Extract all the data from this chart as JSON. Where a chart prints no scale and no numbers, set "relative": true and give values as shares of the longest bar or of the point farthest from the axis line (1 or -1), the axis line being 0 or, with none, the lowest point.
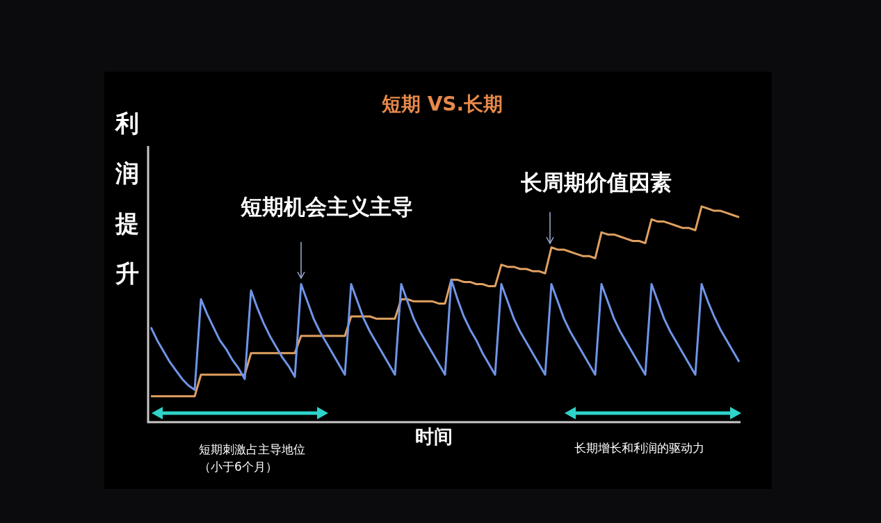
{
  "chart_data": {
    "type": "line",
    "title": "短期 VS.长期",
    "xlabel": "时间",
    "ylabel": "利润提升",
    "relative": true,
    "categories": [
      null,
      null,
      null,
      null,
      null,
      null,
      null,
      null,
      null,
      null,
      null,
      null,
      null,
      null,
      null,
      null,
      null,
      null,
      null,
      null,
      null,
      null,
      null,
      null,
      null,
      null,
      null,
      null,
      null,
      null,
      null,
      null,
      null,
      null,
      null,
      null,
      null,
      null,
      null,
      null,
      null,
      null,
      null,
      null,
      null,
      null,
      null,
      null,
      null,
      null,
      null,
      null,
      null,
      null,
      null,
      null,
      null,
      null,
      null,
      null,
      null,
      null,
      null,
      null,
      null,
      null,
      null,
      null,
      null,
      null,
      null,
      null,
      null,
      null,
      null,
      null,
      null,
      null,
      null,
      null,
      null,
      null,
      null,
      null,
      null,
      null,
      null,
      null,
      null,
      null,
      null,
      null,
      null,
      null,
      null
    ],
    "annotations": [
      "短期机会主义主导",
      "长周期价值因素",
      "短期刺激占主导地位",
      "（小于6个月）",
      "长期增长和利润的驱动力"
    ],
    "series": [
      {
        "color": "#6f95e8",
        "values": [
          0.44,
          0.38,
          0.33,
          0.28,
          0.24,
          0.2,
          0.17,
          0.15,
          0.57,
          0.5,
          0.44,
          0.38,
          0.34,
          0.29,
          0.25,
          0.2,
          0.61,
          0.53,
          0.46,
          0.4,
          0.35,
          0.3,
          0.26,
          0.21,
          0.64,
          0.56,
          0.48,
          0.42,
          0.37,
          0.32,
          0.27,
          0.22,
          0.64,
          0.56,
          0.48,
          0.42,
          0.37,
          0.32,
          0.27,
          0.22,
          0.64,
          0.56,
          0.48,
          0.42,
          0.37,
          0.32,
          0.27,
          0.22,
          0.66,
          0.57,
          0.49,
          0.43,
          0.38,
          0.32,
          0.27,
          0.22,
          0.64,
          0.56,
          0.48,
          0.42,
          0.37,
          0.32,
          0.27,
          0.22,
          0.64,
          0.56,
          0.48,
          0.42,
          0.37,
          0.32,
          0.27,
          0.22,
          0.64,
          0.56,
          0.48,
          0.42,
          0.37,
          0.32,
          0.27,
          0.22,
          0.64,
          0.56,
          0.48,
          0.42,
          0.37,
          0.32,
          0.27,
          0.22,
          0.64,
          0.56,
          0.49,
          0.43,
          0.38,
          0.33,
          0.28
        ]
      },
      {
        "color": "#e0a060",
        "values": [
          0.12,
          0.12,
          0.12,
          0.12,
          0.12,
          0.12,
          0.12,
          0.12,
          0.22,
          0.22,
          0.22,
          0.22,
          0.22,
          0.22,
          0.22,
          0.22,
          0.32,
          0.32,
          0.32,
          0.32,
          0.32,
          0.32,
          0.32,
          0.32,
          0.4,
          0.4,
          0.4,
          0.4,
          0.4,
          0.4,
          0.4,
          0.4,
          0.49,
          0.49,
          0.49,
          0.49,
          0.48,
          0.48,
          0.48,
          0.48,
          0.57,
          0.57,
          0.56,
          0.56,
          0.56,
          0.56,
          0.55,
          0.55,
          0.66,
          0.66,
          0.65,
          0.65,
          0.64,
          0.64,
          0.63,
          0.63,
          0.73,
          0.72,
          0.72,
          0.71,
          0.71,
          0.7,
          0.7,
          0.69,
          0.81,
          0.8,
          0.8,
          0.79,
          0.78,
          0.77,
          0.77,
          0.76,
          0.88,
          0.87,
          0.87,
          0.86,
          0.85,
          0.84,
          0.84,
          0.83,
          0.94,
          0.93,
          0.93,
          0.92,
          0.91,
          0.9,
          0.9,
          0.89,
          1,
          0.99,
          0.98,
          0.98,
          0.97,
          0.96,
          0.95
        ]
      }
    ]
  }
}
